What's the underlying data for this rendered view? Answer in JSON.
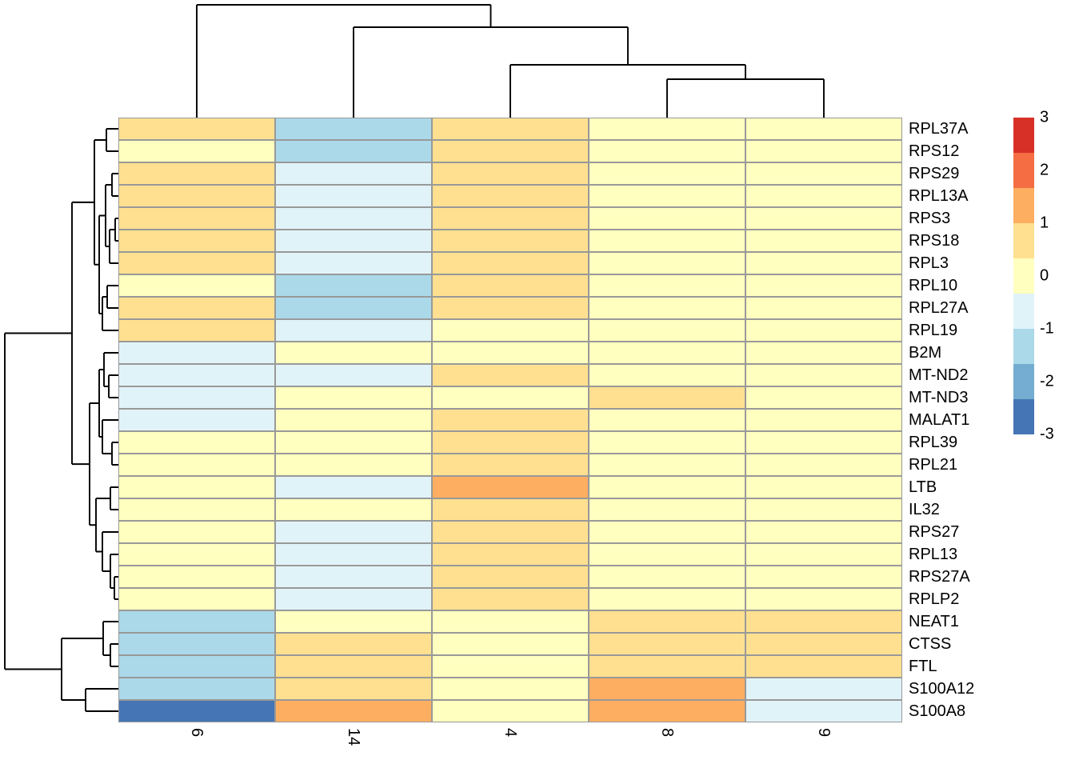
{
  "figure": {
    "kind": "clustered heatmap with row and column dendrograms",
    "background": "#ffffff"
  },
  "chart_data": {
    "type": "heatmap",
    "columns": [
      "6",
      "14",
      "4",
      "8",
      "9"
    ],
    "rows": [
      "RPL37A",
      "RPS12",
      "RPS29",
      "RPL13A",
      "RPS3",
      "RPS18",
      "RPL3",
      "RPL10",
      "RPL27A",
      "RPL19",
      "B2M",
      "MT-ND2",
      "MT-ND3",
      "MALAT1",
      "RPL39",
      "RPL21",
      "LTB",
      "IL32",
      "RPS27",
      "RPL13",
      "RPS27A",
      "RPLP2",
      "NEAT1",
      "CTSS",
      "FTL",
      "S100A12",
      "S100A8"
    ],
    "legend": {
      "position": "right",
      "ticks": [
        "3",
        "2",
        "1",
        "0",
        "-1",
        "-2",
        "-3"
      ],
      "max": 3,
      "min": -3,
      "block_colors": [
        "#d73027",
        "#f46d43",
        "#fdae61",
        "#fee090",
        "#ffffbf",
        "#e0f3f8",
        "#abd9e9",
        "#74add1",
        "#4575b4"
      ]
    },
    "palette": {
      "r1": "#d73027",
      "r2": "#f46d43",
      "o2": "#fdae61",
      "o1": "#fee090",
      "y0": "#ffffbf",
      "b1": "#e0f3f8",
      "b2": "#abd9e9",
      "b3": "#74add1",
      "b4": "#4575b4"
    },
    "value_map": {
      "r1": 2.7,
      "r2": 2.0,
      "o2": 1.3,
      "o1": 0.7,
      "y0": 0.0,
      "b1": -0.7,
      "b2": -1.3,
      "b3": -2.0,
      "b4": -2.7
    },
    "cell_colors": [
      [
        "o1",
        "b2",
        "o1",
        "y0",
        "y0"
      ],
      [
        "y0",
        "b2",
        "o1",
        "y0",
        "y0"
      ],
      [
        "o1",
        "b1",
        "o1",
        "y0",
        "y0"
      ],
      [
        "o1",
        "b1",
        "o1",
        "y0",
        "y0"
      ],
      [
        "o1",
        "b1",
        "o1",
        "y0",
        "y0"
      ],
      [
        "o1",
        "b1",
        "o1",
        "y0",
        "y0"
      ],
      [
        "o1",
        "b1",
        "o1",
        "y0",
        "y0"
      ],
      [
        "y0",
        "b2",
        "o1",
        "y0",
        "y0"
      ],
      [
        "o1",
        "b2",
        "o1",
        "y0",
        "y0"
      ],
      [
        "o1",
        "b1",
        "y0",
        "y0",
        "y0"
      ],
      [
        "b1",
        "y0",
        "y0",
        "y0",
        "y0"
      ],
      [
        "b1",
        "b1",
        "o1",
        "y0",
        "y0"
      ],
      [
        "b1",
        "y0",
        "y0",
        "o1",
        "y0"
      ],
      [
        "b1",
        "y0",
        "o1",
        "y0",
        "y0"
      ],
      [
        "y0",
        "y0",
        "o1",
        "y0",
        "y0"
      ],
      [
        "y0",
        "y0",
        "o1",
        "y0",
        "y0"
      ],
      [
        "y0",
        "b1",
        "o2",
        "y0",
        "y0"
      ],
      [
        "y0",
        "y0",
        "o1",
        "y0",
        "y0"
      ],
      [
        "y0",
        "b1",
        "o1",
        "y0",
        "y0"
      ],
      [
        "y0",
        "b1",
        "o1",
        "y0",
        "y0"
      ],
      [
        "y0",
        "b1",
        "o1",
        "y0",
        "y0"
      ],
      [
        "y0",
        "b1",
        "o1",
        "y0",
        "y0"
      ],
      [
        "b2",
        "y0",
        "y0",
        "o1",
        "o1"
      ],
      [
        "b2",
        "o1",
        "y0",
        "o1",
        "o1"
      ],
      [
        "b2",
        "o1",
        "y0",
        "o1",
        "o1"
      ],
      [
        "b2",
        "o1",
        "y0",
        "o2",
        "b1"
      ],
      [
        "b4",
        "o2",
        "y0",
        "o2",
        "b1"
      ]
    ],
    "values_estimate": [
      [
        0.7,
        -1.3,
        0.7,
        0,
        0
      ],
      [
        0,
        -1.3,
        0.7,
        0,
        0
      ],
      [
        0.7,
        -0.7,
        0.7,
        0,
        0
      ],
      [
        0.7,
        -0.7,
        0.7,
        0,
        0
      ],
      [
        0.7,
        -0.7,
        0.7,
        0,
        0
      ],
      [
        0.7,
        -0.7,
        0.7,
        0,
        0
      ],
      [
        0.7,
        -0.7,
        0.7,
        0,
        0
      ],
      [
        0,
        -1.3,
        0.7,
        0,
        0
      ],
      [
        0.7,
        -1.3,
        0.7,
        0,
        0
      ],
      [
        0.7,
        -0.7,
        0,
        0,
        0
      ],
      [
        -0.7,
        0,
        0,
        0,
        0
      ],
      [
        -0.7,
        -0.7,
        0.7,
        0,
        0
      ],
      [
        -0.7,
        0,
        0,
        0.7,
        0
      ],
      [
        -0.7,
        0,
        0.7,
        0,
        0
      ],
      [
        0,
        0,
        0.7,
        0,
        0
      ],
      [
        0,
        0,
        0.7,
        0,
        0
      ],
      [
        0,
        -0.7,
        1.3,
        0,
        0
      ],
      [
        0,
        0,
        0.7,
        0,
        0
      ],
      [
        0,
        -0.7,
        0.7,
        0,
        0
      ],
      [
        0,
        -0.7,
        0.7,
        0,
        0
      ],
      [
        0,
        -0.7,
        0.7,
        0,
        0
      ],
      [
        0,
        -0.7,
        0.7,
        0,
        0
      ],
      [
        -1.3,
        0,
        0,
        0.7,
        0.7
      ],
      [
        -1.3,
        0.7,
        0,
        0.7,
        0.7
      ],
      [
        -1.3,
        0.7,
        0,
        0.7,
        0.7
      ],
      [
        -1.3,
        0.7,
        0,
        1.3,
        -0.7
      ],
      [
        -2.7,
        1.3,
        0,
        1.3,
        -0.7
      ]
    ],
    "row_dendrogram": {
      "d": 6,
      "c": [
        {
          "d": 90,
          "c": [
            {
              "d": 118,
              "c": [
                {
                  "d": 133,
                  "c": [
                    0,
                    1
                  ]
                },
                {
                  "d": 124,
                  "c": [
                    {
                      "d": 132,
                      "c": [
                        {
                          "d": 140,
                          "c": [
                            2,
                            3
                          ]
                        },
                        {
                          "d": 137,
                          "c": [
                            {
                              "d": 144,
                              "c": [
                                4,
                                5
                              ]
                            },
                            6
                          ]
                        }
                      ]
                    },
                    {
                      "d": 128,
                      "c": [
                        {
                          "d": 134,
                          "c": [
                            7,
                            8
                          ]
                        },
                        9
                      ]
                    }
                  ]
                }
              ]
            },
            {
              "d": 112,
              "c": [
                {
                  "d": 124,
                  "c": [
                    {
                      "d": 130,
                      "c": [
                        10,
                        {
                          "d": 136,
                          "c": [
                            11,
                            12
                          ]
                        }
                      ]
                    },
                    {
                      "d": 128,
                      "c": [
                        13,
                        {
                          "d": 140,
                          "c": [
                            14,
                            15
                          ]
                        }
                      ]
                    }
                  ]
                },
                {
                  "d": 120,
                  "c": [
                    {
                      "d": 138,
                      "c": [
                        16,
                        17
                      ]
                    },
                    {
                      "d": 128,
                      "c": [
                        18,
                        {
                          "d": 138,
                          "c": [
                            19,
                            {
                              "d": 143,
                              "c": [
                                20,
                                21
                              ]
                            }
                          ]
                        }
                      ]
                    }
                  ]
                }
              ]
            }
          ]
        },
        {
          "d": 77,
          "c": [
            {
              "d": 129,
              "c": [
                22,
                {
                  "d": 138,
                  "c": [
                    23,
                    24
                  ]
                }
              ]
            },
            {
              "d": 107,
              "c": [
                25,
                26
              ]
            }
          ]
        }
      ]
    },
    "column_dendrogram": {
      "d": 6,
      "c": [
        0,
        {
          "d": 34,
          "c": [
            1,
            {
              "d": 81,
              "c": [
                2,
                {
                  "d": 99,
                  "c": [
                    3,
                    4
                  ]
                }
              ]
            }
          ]
        }
      ]
    },
    "colors": {
      "cell_border": "#999999",
      "dendrogram_line": "#000000",
      "label_text": "#000000"
    }
  }
}
